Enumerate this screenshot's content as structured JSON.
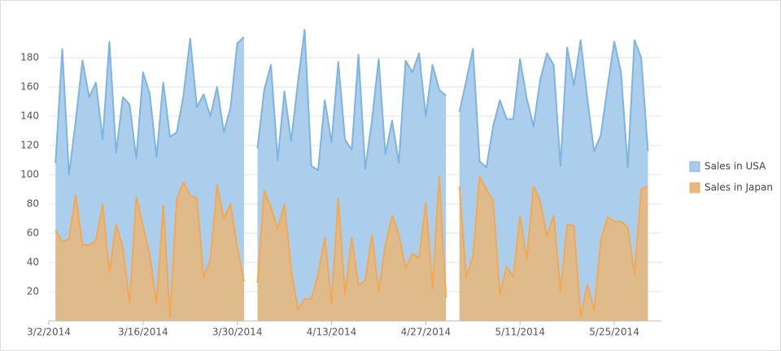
{
  "chart_data": {
    "type": "area",
    "x": [
      "2014-03-03",
      "2014-03-04",
      "2014-03-05",
      "2014-03-06",
      "2014-03-07",
      "2014-03-08",
      "2014-03-09",
      "2014-03-10",
      "2014-03-11",
      "2014-03-12",
      "2014-03-13",
      "2014-03-14",
      "2014-03-15",
      "2014-03-16",
      "2014-03-17",
      "2014-03-18",
      "2014-03-19",
      "2014-03-20",
      "2014-03-21",
      "2014-03-22",
      "2014-03-23",
      "2014-03-24",
      "2014-03-25",
      "2014-03-26",
      "2014-03-27",
      "2014-03-28",
      "2014-03-29",
      "2014-03-30",
      "2014-03-31",
      "2014-04-01",
      "2014-04-02",
      "2014-04-03",
      "2014-04-04",
      "2014-04-05",
      "2014-04-06",
      "2014-04-07",
      "2014-04-08",
      "2014-04-09",
      "2014-04-10",
      "2014-04-11",
      "2014-04-12",
      "2014-04-13",
      "2014-04-14",
      "2014-04-15",
      "2014-04-16",
      "2014-04-17",
      "2014-04-18",
      "2014-04-19",
      "2014-04-20",
      "2014-04-21",
      "2014-04-22",
      "2014-04-23",
      "2014-04-24",
      "2014-04-25",
      "2014-04-26",
      "2014-04-27",
      "2014-04-28",
      "2014-04-29",
      "2014-04-30",
      "2014-05-01",
      "2014-05-02",
      "2014-05-03",
      "2014-05-04",
      "2014-05-05",
      "2014-05-06",
      "2014-05-07",
      "2014-05-08",
      "2014-05-09",
      "2014-05-10",
      "2014-05-11",
      "2014-05-12",
      "2014-05-13",
      "2014-05-14",
      "2014-05-15",
      "2014-05-16",
      "2014-05-17",
      "2014-05-18",
      "2014-05-19",
      "2014-05-20",
      "2014-05-21",
      "2014-05-22",
      "2014-05-23",
      "2014-05-24",
      "2014-05-25",
      "2014-05-26",
      "2014-05-27",
      "2014-05-28",
      "2014-05-29",
      "2014-05-30"
    ],
    "series": [
      {
        "name": "Sales in USA",
        "color": "#7fb3e0",
        "fill": "#a8cbec",
        "values": [
          108,
          186,
          100,
          137,
          178,
          153,
          163,
          124,
          191,
          115,
          153,
          148,
          111,
          170,
          155,
          112,
          163,
          126,
          129,
          154,
          193,
          146,
          155,
          140,
          160,
          129,
          146,
          190,
          194,
          null,
          118,
          158,
          175,
          110,
          157,
          123,
          163,
          199,
          106,
          103,
          151,
          122,
          177,
          124,
          117,
          182,
          104,
          137,
          179,
          114,
          137,
          108,
          178,
          170,
          183,
          140,
          175,
          158,
          154,
          null,
          143,
          164,
          186,
          109,
          105,
          133,
          151,
          138,
          138,
          179,
          152,
          133,
          165,
          183,
          175,
          106,
          187,
          161,
          192,
          152,
          116,
          127,
          160,
          191,
          170,
          105,
          192,
          180,
          116
        ]
      },
      {
        "name": "Sales in Japan",
        "color": "#f5a850",
        "fill": "#e2b986",
        "values": [
          62,
          54,
          56,
          86,
          52,
          52,
          55,
          80,
          33,
          66,
          50,
          12,
          85,
          65,
          45,
          12,
          79,
          3,
          83,
          95,
          86,
          84,
          30,
          42,
          93,
          70,
          80,
          50,
          27,
          null,
          26,
          89,
          78,
          63,
          80,
          35,
          8,
          15,
          15,
          32,
          57,
          12,
          84,
          18,
          57,
          24,
          28,
          59,
          20,
          52,
          72,
          59,
          36,
          46,
          43,
          81,
          22,
          99,
          16,
          null,
          92,
          30,
          44,
          99,
          90,
          82,
          18,
          37,
          30,
          72,
          42,
          92,
          82,
          58,
          72,
          20,
          66,
          65,
          3,
          25,
          7,
          55,
          71,
          68,
          68,
          64,
          32,
          90,
          92
        ]
      }
    ],
    "xlim": [
      "2014-03-02",
      "2014-06-01"
    ],
    "xticks": [
      {
        "value": "2014-03-02",
        "label": "3/2/2014"
      },
      {
        "value": "2014-03-16",
        "label": "3/16/2014"
      },
      {
        "value": "2014-03-30",
        "label": "3/30/2014"
      },
      {
        "value": "2014-04-13",
        "label": "4/13/2014"
      },
      {
        "value": "2014-04-27",
        "label": "4/27/2014"
      },
      {
        "value": "2014-05-11",
        "label": "5/11/2014"
      },
      {
        "value": "2014-05-25",
        "label": "5/25/2014"
      }
    ],
    "ylim": [
      0,
      200
    ],
    "yticks": [
      20,
      40,
      60,
      80,
      100,
      120,
      140,
      160,
      180
    ],
    "grid": true,
    "legend": "right"
  }
}
